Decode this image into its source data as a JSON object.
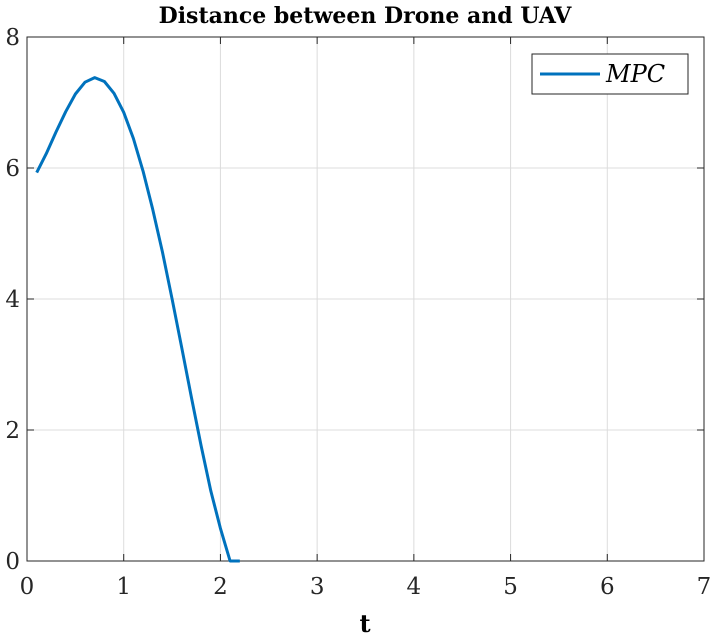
{
  "chart_data": {
    "type": "line",
    "title": "Distance between Drone and UAV",
    "xlabel": "t",
    "ylabel": "",
    "xlim": [
      0,
      7
    ],
    "ylim": [
      0,
      8
    ],
    "xticks": [
      0,
      1,
      2,
      3,
      4,
      5,
      6,
      7
    ],
    "yticks": [
      0,
      2,
      4,
      6,
      8
    ],
    "grid": true,
    "legend_position": "top-right",
    "series": [
      {
        "name": "MPC",
        "color": "#0072BD",
        "x": [
          0.1,
          0.2,
          0.3,
          0.4,
          0.5,
          0.6,
          0.7,
          0.8,
          0.9,
          1.0,
          1.1,
          1.2,
          1.3,
          1.4,
          1.5,
          1.6,
          1.7,
          1.8,
          1.9,
          2.0,
          2.1,
          2.2
        ],
        "y": [
          5.93,
          6.22,
          6.55,
          6.86,
          7.13,
          7.31,
          7.38,
          7.32,
          7.14,
          6.85,
          6.45,
          5.95,
          5.37,
          4.72,
          4.0,
          3.26,
          2.5,
          1.76,
          1.07,
          0.5,
          0.0,
          0.0
        ]
      }
    ]
  }
}
